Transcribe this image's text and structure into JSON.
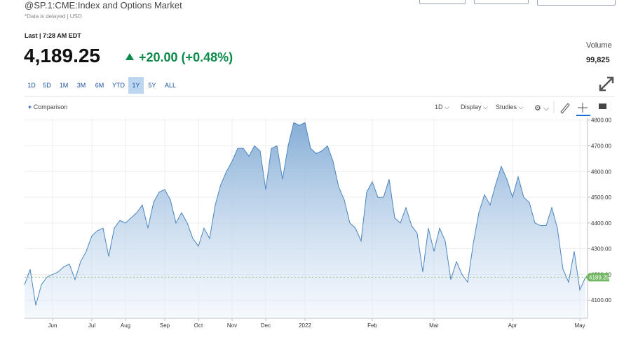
{
  "header": {
    "title": "@SP.1:CME:Index and Options Market",
    "note": "*Data is delayed | USD",
    "last_time": "Last | 7:28 AM EDT",
    "price": "4,189.25",
    "change": "+20.00 (+0.48%)",
    "volume_label": "Volume",
    "volume": "99,825"
  },
  "ranges": {
    "items": [
      "1D",
      "5D",
      "1M",
      "3M",
      "6M",
      "YTD",
      "1Y",
      "5Y",
      "ALL"
    ],
    "active": 6
  },
  "toolbar": {
    "comparison": "Comparison",
    "interval": "1D",
    "display": "Display",
    "studies": "Studies"
  },
  "chart_data": {
    "type": "line",
    "color": "#4a86c0",
    "grid": true,
    "categories": [
      null,
      null,
      null,
      null,
      null,
      "Jun",
      null,
      null,
      null,
      null,
      null,
      null,
      "Jul",
      null,
      null,
      null,
      null,
      null,
      "Aug",
      null,
      null,
      null,
      null,
      null,
      null,
      "Sep",
      null,
      null,
      null,
      null,
      null,
      "Oct",
      null,
      null,
      null,
      null,
      null,
      "Nov",
      null,
      null,
      null,
      null,
      null,
      "Dec",
      null,
      null,
      null,
      null,
      null,
      null,
      "2022",
      null,
      null,
      null,
      null,
      null,
      null,
      null,
      null,
      null,
      null,
      null,
      "Feb",
      null,
      null,
      null,
      null,
      null,
      null,
      null,
      null,
      null,
      null,
      "Mar",
      null,
      null,
      null,
      null,
      null,
      null,
      null,
      null,
      null,
      null,
      null,
      null,
      null,
      "Apr",
      null,
      null,
      null,
      null,
      null,
      null,
      null,
      null,
      null,
      null,
      null,
      "May",
      null
    ],
    "values": [
      4160,
      4220,
      4080,
      4160,
      4190,
      4200,
      4210,
      4230,
      4240,
      4180,
      4250,
      4290,
      4350,
      4370,
      4380,
      4270,
      4380,
      4410,
      4400,
      4420,
      4440,
      4470,
      4380,
      4480,
      4520,
      4530,
      4490,
      4400,
      4440,
      4400,
      4340,
      4310,
      4380,
      4340,
      4470,
      4550,
      4600,
      4640,
      4690,
      4690,
      4660,
      4700,
      4680,
      4530,
      4690,
      4700,
      4570,
      4700,
      4790,
      4780,
      4790,
      4690,
      4670,
      4680,
      4700,
      4640,
      4540,
      4490,
      4400,
      4380,
      4330,
      4520,
      4560,
      4500,
      4500,
      4570,
      4420,
      4400,
      4460,
      4390,
      4360,
      4210,
      4380,
      4290,
      4380,
      4330,
      4180,
      4250,
      4200,
      4170,
      4320,
      4440,
      4510,
      4470,
      4550,
      4620,
      4570,
      4500,
      4580,
      4500,
      4480,
      4400,
      4390,
      4390,
      4460,
      4380,
      4220,
      4170,
      4290,
      4140,
      4189.25
    ],
    "price_tag": "4189.25",
    "ylim": [
      4030,
      4810
    ],
    "yticks": [
      {
        "value": 4100,
        "label": "4100.00"
      },
      {
        "value": 4200,
        "label": "4200.00"
      },
      {
        "value": 4300,
        "label": "4300.00"
      },
      {
        "value": 4400,
        "label": "4400.00"
      },
      {
        "value": 4500,
        "label": "4500.00"
      },
      {
        "value": 4600,
        "label": "4600.00"
      },
      {
        "value": 4700,
        "label": "4700.00"
      },
      {
        "value": 4800,
        "label": "4800.00"
      }
    ]
  }
}
